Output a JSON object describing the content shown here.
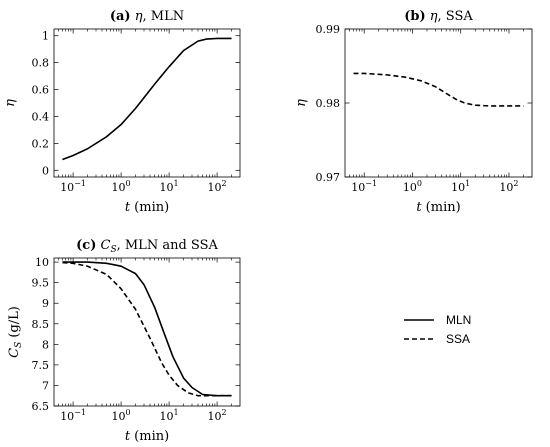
{
  "chart_data": [
    {
      "type": "line",
      "title": {
        "letter": "(a)",
        "var": "η",
        "rest": ", MLN"
      },
      "xlabel": {
        "var": "t",
        "unit": " (min)"
      },
      "ylabel": "η",
      "xscale": "log",
      "xlim": [
        0.04,
        300
      ],
      "ylim": [
        -0.05,
        1.05
      ],
      "xticks": [
        {
          "value": 0.1,
          "label": "10",
          "exp": "−1"
        },
        {
          "value": 1,
          "label": "10",
          "exp": "0"
        },
        {
          "value": 10,
          "label": "10",
          "exp": "1"
        },
        {
          "value": 100,
          "label": "10",
          "exp": "2"
        }
      ],
      "yticks": [
        {
          "value": 0,
          "label": "0"
        },
        {
          "value": 0.2,
          "label": "0.2"
        },
        {
          "value": 0.4,
          "label": "0.4"
        },
        {
          "value": 0.6,
          "label": "0.6"
        },
        {
          "value": 0.8,
          "label": "0.8"
        },
        {
          "value": 1,
          "label": "1"
        }
      ],
      "series": [
        {
          "name": "MLN",
          "dash": "solid",
          "x": [
            0.06,
            0.1,
            0.2,
            0.5,
            1,
            2,
            5,
            10,
            20,
            40,
            60,
            100,
            200
          ],
          "y": [
            0.08,
            0.11,
            0.16,
            0.25,
            0.34,
            0.46,
            0.64,
            0.77,
            0.89,
            0.96,
            0.975,
            0.98,
            0.98
          ]
        }
      ]
    },
    {
      "type": "line",
      "title": {
        "letter": "(b)",
        "var": "η",
        "rest": ", SSA"
      },
      "xlabel": {
        "var": "t",
        "unit": " (min)"
      },
      "ylabel": "η",
      "xscale": "log",
      "xlim": [
        0.04,
        300
      ],
      "ylim": [
        0.97,
        0.99
      ],
      "xticks": [
        {
          "value": 0.1,
          "label": "10",
          "exp": "−1"
        },
        {
          "value": 1,
          "label": "10",
          "exp": "0"
        },
        {
          "value": 10,
          "label": "10",
          "exp": "1"
        },
        {
          "value": 100,
          "label": "10",
          "exp": "2"
        }
      ],
      "yticks": [
        {
          "value": 0.97,
          "label": "0.97"
        },
        {
          "value": 0.98,
          "label": "0.98"
        },
        {
          "value": 0.99,
          "label": "0.99"
        }
      ],
      "series": [
        {
          "name": "SSA",
          "dash": "dashed",
          "x": [
            0.06,
            0.1,
            0.3,
            0.7,
            1.5,
            3,
            5,
            8,
            12,
            20,
            40,
            100,
            200
          ],
          "y": [
            0.984,
            0.984,
            0.9838,
            0.9835,
            0.983,
            0.9822,
            0.9813,
            0.9805,
            0.98,
            0.9797,
            0.9796,
            0.9796,
            0.9796
          ]
        }
      ]
    },
    {
      "type": "line",
      "title": {
        "letter": "(c)",
        "var": "C",
        "sub": "S",
        "rest": ", MLN and SSA"
      },
      "xlabel": {
        "var": "t",
        "unit": " (min)"
      },
      "ylabel": {
        "var": "C",
        "sub": "S",
        "unit": " (g/L)"
      },
      "xscale": "log",
      "xlim": [
        0.04,
        300
      ],
      "ylim": [
        6.5,
        10.1
      ],
      "xticks": [
        {
          "value": 0.1,
          "label": "10",
          "exp": "−1"
        },
        {
          "value": 1,
          "label": "10",
          "exp": "0"
        },
        {
          "value": 10,
          "label": "10",
          "exp": "1"
        },
        {
          "value": 100,
          "label": "10",
          "exp": "2"
        }
      ],
      "yticks": [
        {
          "value": 6.5,
          "label": "6.5"
        },
        {
          "value": 7,
          "label": "7"
        },
        {
          "value": 7.5,
          "label": "7.5"
        },
        {
          "value": 8,
          "label": "8"
        },
        {
          "value": 8.5,
          "label": "8.5"
        },
        {
          "value": 9,
          "label": "9"
        },
        {
          "value": 9.5,
          "label": "9.5"
        },
        {
          "value": 10,
          "label": "10"
        }
      ],
      "series": [
        {
          "name": "MLN",
          "dash": "solid",
          "x": [
            0.06,
            0.2,
            0.5,
            1,
            2,
            3,
            5,
            8,
            12,
            20,
            30,
            50,
            100,
            200
          ],
          "y": [
            10.0,
            10.0,
            9.97,
            9.9,
            9.72,
            9.45,
            8.9,
            8.25,
            7.7,
            7.18,
            6.95,
            6.78,
            6.75,
            6.75
          ]
        },
        {
          "name": "SSA",
          "dash": "dashed",
          "x": [
            0.06,
            0.1,
            0.2,
            0.5,
            1,
            2,
            4,
            7,
            10,
            15,
            25,
            40,
            60,
            100,
            200
          ],
          "y": [
            9.99,
            9.97,
            9.9,
            9.7,
            9.35,
            8.85,
            8.15,
            7.55,
            7.25,
            7.0,
            6.82,
            6.75,
            6.75,
            6.75,
            6.75
          ]
        }
      ]
    }
  ],
  "legend": {
    "placement": "right-of-panel-c",
    "items": [
      {
        "label": "MLN",
        "dash": "solid"
      },
      {
        "label": "SSA",
        "dash": "dashed"
      }
    ]
  }
}
